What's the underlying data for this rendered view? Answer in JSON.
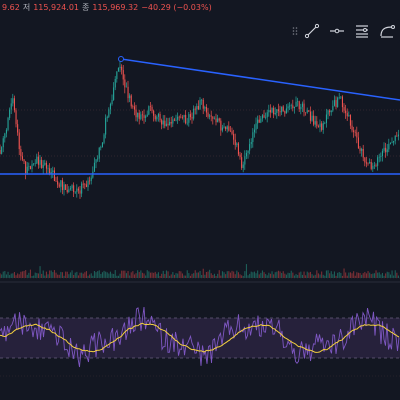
{
  "ohlc": {
    "open": "9.62",
    "low_label": "저",
    "low": "115,924.01",
    "close_label": "종",
    "close": "115,969.32",
    "change": "−40.29 (−0.03%)"
  },
  "colors": {
    "background": "#131722",
    "up": "#26a69a",
    "down": "#ef5350",
    "trendline": "#2962ff",
    "rsi_line": "#7e57c2",
    "rsi_ma": "#f4d03f",
    "rsi_band": "#2a2340",
    "toolbar_icon": "#d1d4dc"
  },
  "drawing_toolbar": {
    "tools": [
      "drag-handle-icon",
      "trend-line-icon",
      "horizontal-ray-icon",
      "settings-lines-icon",
      "curve-icon"
    ]
  }
}
